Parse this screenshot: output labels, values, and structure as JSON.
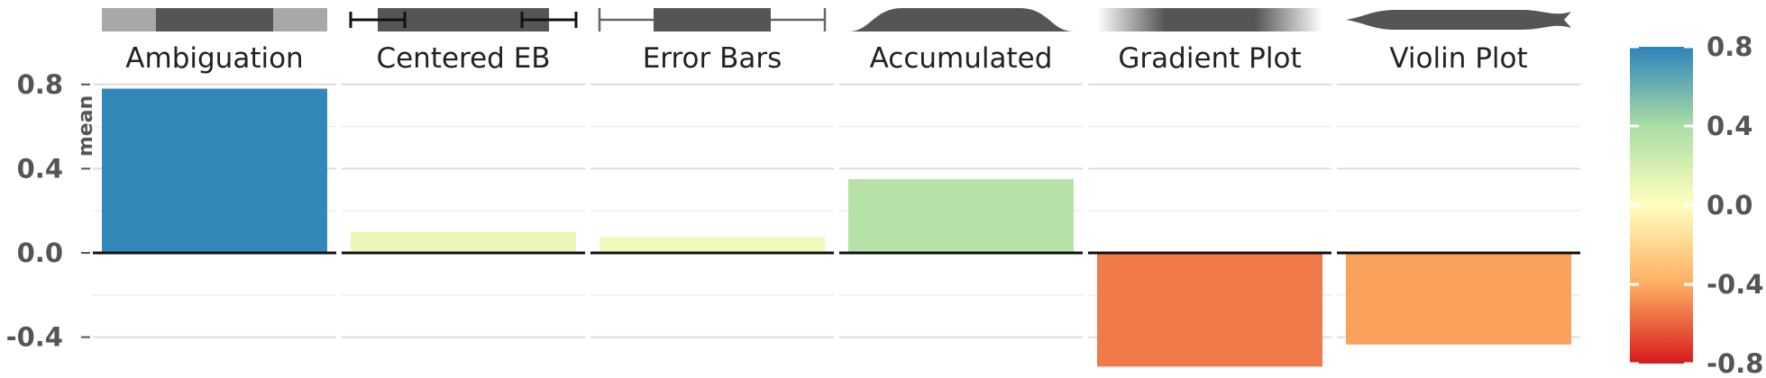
{
  "chart_data": {
    "type": "bar",
    "categories": [
      "Ambiguation",
      "Centered EB",
      "Error Bars",
      "Accumulated",
      "Gradient Plot",
      "Violin Plot"
    ],
    "values": [
      0.78,
      0.1,
      0.075,
      0.35,
      -0.54,
      -0.435
    ],
    "ylabel": "mean",
    "ylim": [
      -0.54,
      0.82
    ],
    "yticks": [
      0.8,
      0.4,
      0.0,
      -0.4
    ],
    "ytick_labels": [
      "0.8",
      "0.4",
      "0.0",
      "-0.4"
    ],
    "grid": true,
    "facets": "one panel per category, glyph icon above each title",
    "colorbar": {
      "range": [
        -0.8,
        0.8
      ],
      "ticks": [
        0.8,
        0.4,
        0.0,
        -0.4,
        -0.8
      ],
      "tick_labels": [
        "0.8",
        "0.4",
        "0.0",
        "-0.4",
        "-0.8"
      ],
      "colors": [
        "#d7191c",
        "#fdae61",
        "#ffffbf",
        "#abdda4",
        "#2b83ba"
      ],
      "placement": "right"
    },
    "icons": [
      "ambiguation-glyph-icon",
      "centered-error-bar-icon",
      "error-bars-icon",
      "accumulated-icon",
      "gradient-plot-icon",
      "violin-plot-icon"
    ]
  }
}
